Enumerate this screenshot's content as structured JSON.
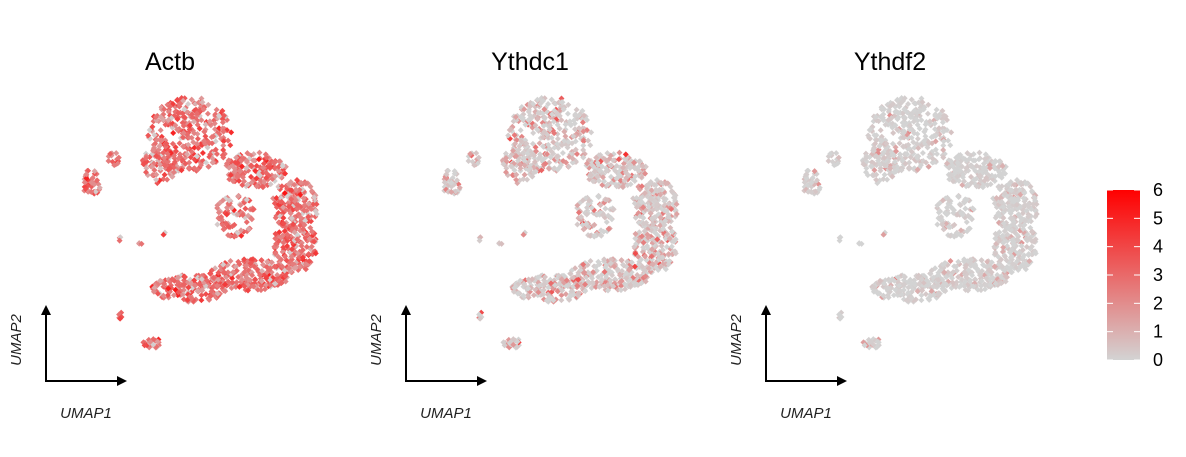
{
  "chart_data": {
    "type": "scatter",
    "legend": {
      "placement": "right",
      "ticks": [
        0,
        1,
        2,
        3,
        4,
        5,
        6
      ],
      "range": [
        0,
        6
      ],
      "low_color": "#d3d3d3",
      "high_color": "#ff0000"
    },
    "panels": [
      {
        "title": "Actb",
        "xlabel": "UMAP1",
        "ylabel": "UMAP2",
        "mean_expression": 2.8,
        "variability": 0.9
      },
      {
        "title": "Ythdc1",
        "xlabel": "UMAP1",
        "ylabel": "UMAP2",
        "mean_expression": 1.0,
        "variability": 1.1
      },
      {
        "title": "Ythdf2",
        "xlabel": "UMAP1",
        "ylabel": "UMAP2",
        "mean_expression": 0.25,
        "variability": 0.9
      }
    ]
  }
}
